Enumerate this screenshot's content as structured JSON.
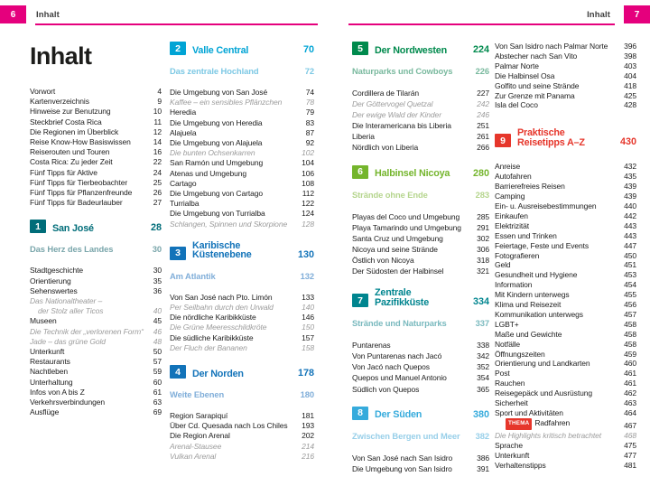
{
  "colors": {
    "brand_pink": "#e5007d",
    "body_text": "#1c1c1c",
    "muted_italic": "#9c9c9c",
    "thema_badge": "#e6362b"
  },
  "pages": [
    {
      "page_number": "6",
      "header_label": "Inhalt",
      "columns": [
        [
          {
            "type": "pagetitle",
            "text": "Inhalt"
          },
          {
            "type": "entries",
            "items": [
              {
                "l": "Vorwort",
                "p": "4"
              },
              {
                "l": "Kartenverzeichnis",
                "p": "9"
              },
              {
                "l": "Hinweise zur Benutzung",
                "p": "10"
              },
              {
                "l": "Steckbrief Costa Rica",
                "p": "11"
              },
              {
                "l": "Die Regionen im Überblick",
                "p": "12"
              },
              {
                "l": "Reise Know-How Basiswissen",
                "p": "14"
              },
              {
                "l": "Reiserouten und Touren",
                "p": "16"
              },
              {
                "l": "Costa Rica: Zu jeder Zeit",
                "p": "22"
              },
              {
                "l": "Fünf Tipps für Aktive",
                "p": "24"
              },
              {
                "l": "Fünf Tipps für Tierbeobachter",
                "p": "25"
              },
              {
                "l": "Fünf Tipps für Pflanzenfreunde",
                "p": "26"
              },
              {
                "l": "Fünf Tipps für Badeurlauber",
                "p": "27"
              }
            ]
          },
          {
            "type": "section",
            "num": "1",
            "lines": [
              "San José"
            ],
            "page": "28",
            "color": "#006d79"
          },
          {
            "type": "subhead",
            "l": "Das Herz des Landes",
            "p": "30",
            "color": "#7aa6ab"
          },
          {
            "type": "entries",
            "items": [
              {
                "l": "Stadtgeschichte",
                "p": "30"
              },
              {
                "l": "Orientierung",
                "p": "35"
              },
              {
                "l": "Sehenswertes",
                "p": "36"
              },
              {
                "l": "Das Nationaltheater –",
                "l2": "der Stolz aller Ticos",
                "p": "40",
                "it": true
              },
              {
                "l": "Museen",
                "p": "45"
              },
              {
                "l": "Die Technik der „verlorenen Form“",
                "p": "46",
                "it": true
              },
              {
                "l": "Jade – das grüne Gold",
                "p": "48",
                "it": true
              },
              {
                "l": "Unterkunft",
                "p": "50"
              },
              {
                "l": "Restaurants",
                "p": "57"
              },
              {
                "l": "Nachtleben",
                "p": "59"
              },
              {
                "l": "Unterhaltung",
                "p": "60"
              },
              {
                "l": "Infos von A bis Z",
                "p": "61"
              },
              {
                "l": "Verkehrsverbindungen",
                "p": "63"
              },
              {
                "l": "Ausflüge",
                "p": "69"
              }
            ]
          }
        ],
        [
          {
            "type": "section",
            "num": "2",
            "lines": [
              "Valle Central"
            ],
            "page": "70",
            "color": "#00a4d5"
          },
          {
            "type": "subhead",
            "l": "Das zentrale Hochland",
            "p": "72",
            "color": "#7cc8e4"
          },
          {
            "type": "entries",
            "items": [
              {
                "l": "Die Umgebung von San José",
                "p": "74"
              },
              {
                "l": "Kaffee – ein sensibles Pflänzchen",
                "p": "78",
                "it": true
              },
              {
                "l": "Heredia",
                "p": "79"
              },
              {
                "l": "Die Umgebung von Heredia",
                "p": "83"
              },
              {
                "l": "Alajuela",
                "p": "87"
              },
              {
                "l": "Die Umgebung von Alajuela",
                "p": "92"
              },
              {
                "l": "Die bunten Ochsenkarren",
                "p": "102",
                "it": true
              },
              {
                "l": "San Ramón und Umgebung",
                "p": "104"
              },
              {
                "l": "Atenas und Umgebung",
                "p": "106"
              },
              {
                "l": "Cartago",
                "p": "108"
              },
              {
                "l": "Die Umgebung von Cartago",
                "p": "112"
              },
              {
                "l": "Turrialba",
                "p": "122"
              },
              {
                "l": "Die Umgebung von Turrialba",
                "p": "124"
              },
              {
                "l": "Schlangen, Spinnen und Skorpione",
                "p": "128",
                "it": true
              }
            ]
          },
          {
            "type": "section",
            "num": "3",
            "lines": [
              "Karibische",
              "Küstenebene"
            ],
            "page": "130",
            "color": "#1273b9"
          },
          {
            "type": "subhead",
            "l": "Am Atlantik",
            "p": "132",
            "color": "#80aed9"
          },
          {
            "type": "entries",
            "items": [
              {
                "l": "Von San José nach Pto. Limón",
                "p": "133"
              },
              {
                "l": "Per Seilbahn durch den Urwald",
                "p": "140",
                "it": true
              },
              {
                "l": "Die nördliche Karibikküste",
                "p": "146"
              },
              {
                "l": "Die Grüne Meeresschildkröte",
                "p": "150",
                "it": true
              },
              {
                "l": "Die südliche Karibikküste",
                "p": "157"
              },
              {
                "l": "Der Fluch der Bananen",
                "p": "158",
                "it": true
              }
            ]
          },
          {
            "type": "section",
            "num": "4",
            "lines": [
              "Der Norden"
            ],
            "page": "178",
            "color": "#1273b9"
          },
          {
            "type": "subhead",
            "l": "Weite Ebenen",
            "p": "180",
            "color": "#80aed9"
          },
          {
            "type": "entries",
            "items": [
              {
                "l": "Region Sarapiquí",
                "p": "181"
              },
              {
                "l": "Über Cd. Quesada nach Los Chiles",
                "p": "193"
              },
              {
                "l": "Die Region Arenal",
                "p": "202"
              },
              {
                "l": "Arenal-Stausee",
                "p": "214",
                "it": true
              },
              {
                "l": "Vulkan Arenal",
                "p": "216",
                "it": true
              }
            ]
          }
        ]
      ]
    },
    {
      "page_number": "7",
      "header_label": "Inhalt",
      "columns": [
        [
          {
            "type": "section",
            "num": "5",
            "lines": [
              "Der Nordwesten"
            ],
            "page": "224",
            "color": "#008a4d"
          },
          {
            "type": "subhead",
            "l": "Naturparks und Cowboys",
            "p": "226",
            "color": "#79b99e"
          },
          {
            "type": "entries",
            "items": [
              {
                "l": "Cordillera de Tilarán",
                "p": "227"
              },
              {
                "l": "Der Göttervogel Quetzal",
                "p": "242",
                "it": true
              },
              {
                "l": "Der ewige Wald der Kinder",
                "p": "246",
                "it": true
              },
              {
                "l": "Die Interamericana bis Liberia",
                "p": "251"
              },
              {
                "l": "Liberia",
                "p": "261"
              },
              {
                "l": "Nördlich von Liberia",
                "p": "266"
              }
            ]
          },
          {
            "type": "section",
            "num": "6",
            "lines": [
              "Halbinsel Nicoya"
            ],
            "page": "280",
            "color": "#74b52c"
          },
          {
            "type": "subhead",
            "l": "Strände ohne Ende",
            "p": "283",
            "color": "#b5d58d"
          },
          {
            "type": "entries",
            "items": [
              {
                "l": "Playas del Coco und Umgebung",
                "p": "285"
              },
              {
                "l": "Playa Tamarindo und Umgebung",
                "p": "291"
              },
              {
                "l": "Santa Cruz und Umgebung",
                "p": "302"
              },
              {
                "l": "Nicoya und seine Strände",
                "p": "306"
              },
              {
                "l": "Östlich von Nicoya",
                "p": "318"
              },
              {
                "l": "Der Südosten der Halbinsel",
                "p": "321"
              }
            ]
          },
          {
            "type": "section",
            "num": "7",
            "lines": [
              "Zentrale",
              "Pazifikküste"
            ],
            "page": "334",
            "color": "#00858f"
          },
          {
            "type": "subhead",
            "l": "Strände und Naturparks",
            "p": "337",
            "color": "#79b9be"
          },
          {
            "type": "entries",
            "items": [
              {
                "l": "Puntarenas",
                "p": "338"
              },
              {
                "l": "Von Puntarenas nach Jacó",
                "p": "342"
              },
              {
                "l": "Von Jacó nach Quepos",
                "p": "352"
              },
              {
                "l": "Quepos und Manuel Antonio",
                "p": "354"
              },
              {
                "l": "Südlich von Quepos",
                "p": "365"
              }
            ]
          },
          {
            "type": "section",
            "num": "8",
            "lines": [
              "Der Süden"
            ],
            "page": "380",
            "color": "#36abdc"
          },
          {
            "type": "subhead",
            "l": "Zwischen Bergen und Meer",
            "p": "382",
            "color": "#97cfe9"
          },
          {
            "type": "entries",
            "items": [
              {
                "l": "Von San José nach San Isidro",
                "p": "386"
              },
              {
                "l": "Die Umgebung von San Isidro",
                "p": "391"
              }
            ]
          }
        ],
        [
          {
            "type": "entries",
            "items": [
              {
                "l": "Von San Isidro nach Palmar Norte",
                "p": "396"
              },
              {
                "l": "Abstecher nach San Vito",
                "p": "398"
              },
              {
                "l": "Palmar Norte",
                "p": "403"
              },
              {
                "l": "Die Halbinsel Osa",
                "p": "404"
              },
              {
                "l": "Golfito und seine Strände",
                "p": "418"
              },
              {
                "l": "Zur Grenze mit Panama",
                "p": "425"
              },
              {
                "l": "Isla del Coco",
                "p": "428"
              }
            ]
          },
          {
            "type": "section",
            "num": "9",
            "lines": [
              "Praktische",
              "Reisetipps A–Z"
            ],
            "page": "430",
            "color": "#e6362b"
          },
          {
            "type": "entries",
            "items": [
              {
                "l": "Anreise",
                "p": "432"
              },
              {
                "l": "Autofahren",
                "p": "435"
              },
              {
                "l": "Barrierefreies Reisen",
                "p": "439"
              },
              {
                "l": "Camping",
                "p": "439"
              },
              {
                "l": "Ein- u. Ausreisebestimmungen",
                "p": "440"
              },
              {
                "l": "Einkaufen",
                "p": "442"
              },
              {
                "l": "Elektrizität",
                "p": "443"
              },
              {
                "l": "Essen und Trinken",
                "p": "443"
              },
              {
                "l": "Feiertage, Feste und Events",
                "p": "447"
              },
              {
                "l": "Fotografieren",
                "p": "450"
              },
              {
                "l": "Geld",
                "p": "451"
              },
              {
                "l": "Gesundheit und Hygiene",
                "p": "453"
              },
              {
                "l": "Information",
                "p": "454"
              },
              {
                "l": "Mit Kindern unterwegs",
                "p": "455"
              },
              {
                "l": "Klima und Reisezeit",
                "p": "456"
              },
              {
                "l": "Kommunikation unterwegs",
                "p": "457"
              },
              {
                "l": "LGBT+",
                "p": "458"
              },
              {
                "l": "Maße und Gewichte",
                "p": "458"
              },
              {
                "l": "Notfälle",
                "p": "458"
              },
              {
                "l": "Öffnungszeiten",
                "p": "459"
              },
              {
                "l": "Orientierung und Landkarten",
                "p": "460"
              },
              {
                "l": "Post",
                "p": "461"
              },
              {
                "l": "Rauchen",
                "p": "461"
              },
              {
                "l": "Reisegepäck und Ausrüstung",
                "p": "462"
              },
              {
                "l": "Sicherheit",
                "p": "463"
              },
              {
                "l": "Sport und Aktivitäten",
                "p": "464"
              },
              {
                "l": "Radfahren",
                "p": "467",
                "badge": "THEMA",
                "ind": true
              },
              {
                "l": "Die Highlights kritisch betrachtet",
                "p": "468",
                "it": true
              },
              {
                "l": "Sprache",
                "p": "475"
              },
              {
                "l": "Unterkunft",
                "p": "477"
              },
              {
                "l": "Verhaltenstipps",
                "p": "481"
              }
            ]
          }
        ]
      ]
    }
  ]
}
